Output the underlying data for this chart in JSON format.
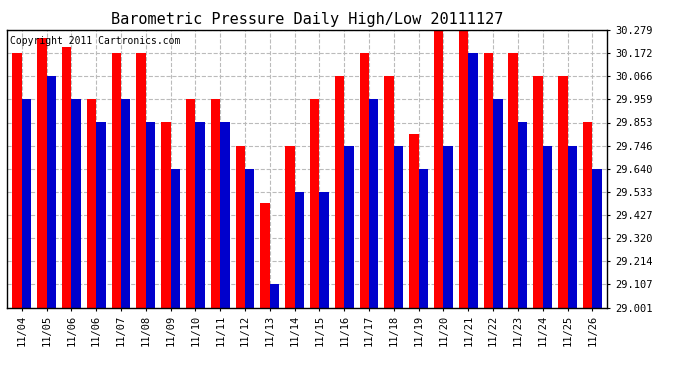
{
  "title": "Barometric Pressure Daily High/Low 20111127",
  "copyright": "Copyright 2011 Cartronics.com",
  "dates": [
    "11/04",
    "11/05",
    "11/06",
    "11/06",
    "11/07",
    "11/08",
    "11/09",
    "11/10",
    "11/11",
    "11/12",
    "11/13",
    "11/14",
    "11/15",
    "11/16",
    "11/17",
    "11/18",
    "11/19",
    "11/20",
    "11/21",
    "11/22",
    "11/23",
    "11/24",
    "11/25",
    "11/26"
  ],
  "highs": [
    30.172,
    30.24,
    30.2,
    29.96,
    30.172,
    30.172,
    29.853,
    29.96,
    29.96,
    29.746,
    29.48,
    29.746,
    29.96,
    30.066,
    30.172,
    30.066,
    29.8,
    30.279,
    30.279,
    30.172,
    30.172,
    30.066,
    30.066,
    29.853
  ],
  "lows": [
    29.959,
    30.066,
    29.959,
    29.853,
    29.959,
    29.853,
    29.64,
    29.853,
    29.853,
    29.64,
    29.107,
    29.533,
    29.533,
    29.746,
    29.959,
    29.746,
    29.64,
    29.746,
    30.172,
    29.959,
    29.853,
    29.746,
    29.746,
    29.64
  ],
  "ymin": 29.001,
  "ymax": 30.279,
  "yticks": [
    29.001,
    29.107,
    29.214,
    29.32,
    29.427,
    29.533,
    29.64,
    29.746,
    29.853,
    29.959,
    30.066,
    30.172,
    30.279
  ],
  "bar_width": 0.38,
  "high_color": "#ff0000",
  "low_color": "#0000cc",
  "bg_color": "#ffffff",
  "grid_color": "#bbbbbb",
  "title_fontsize": 11,
  "tick_fontsize": 7.5,
  "copyright_fontsize": 7
}
